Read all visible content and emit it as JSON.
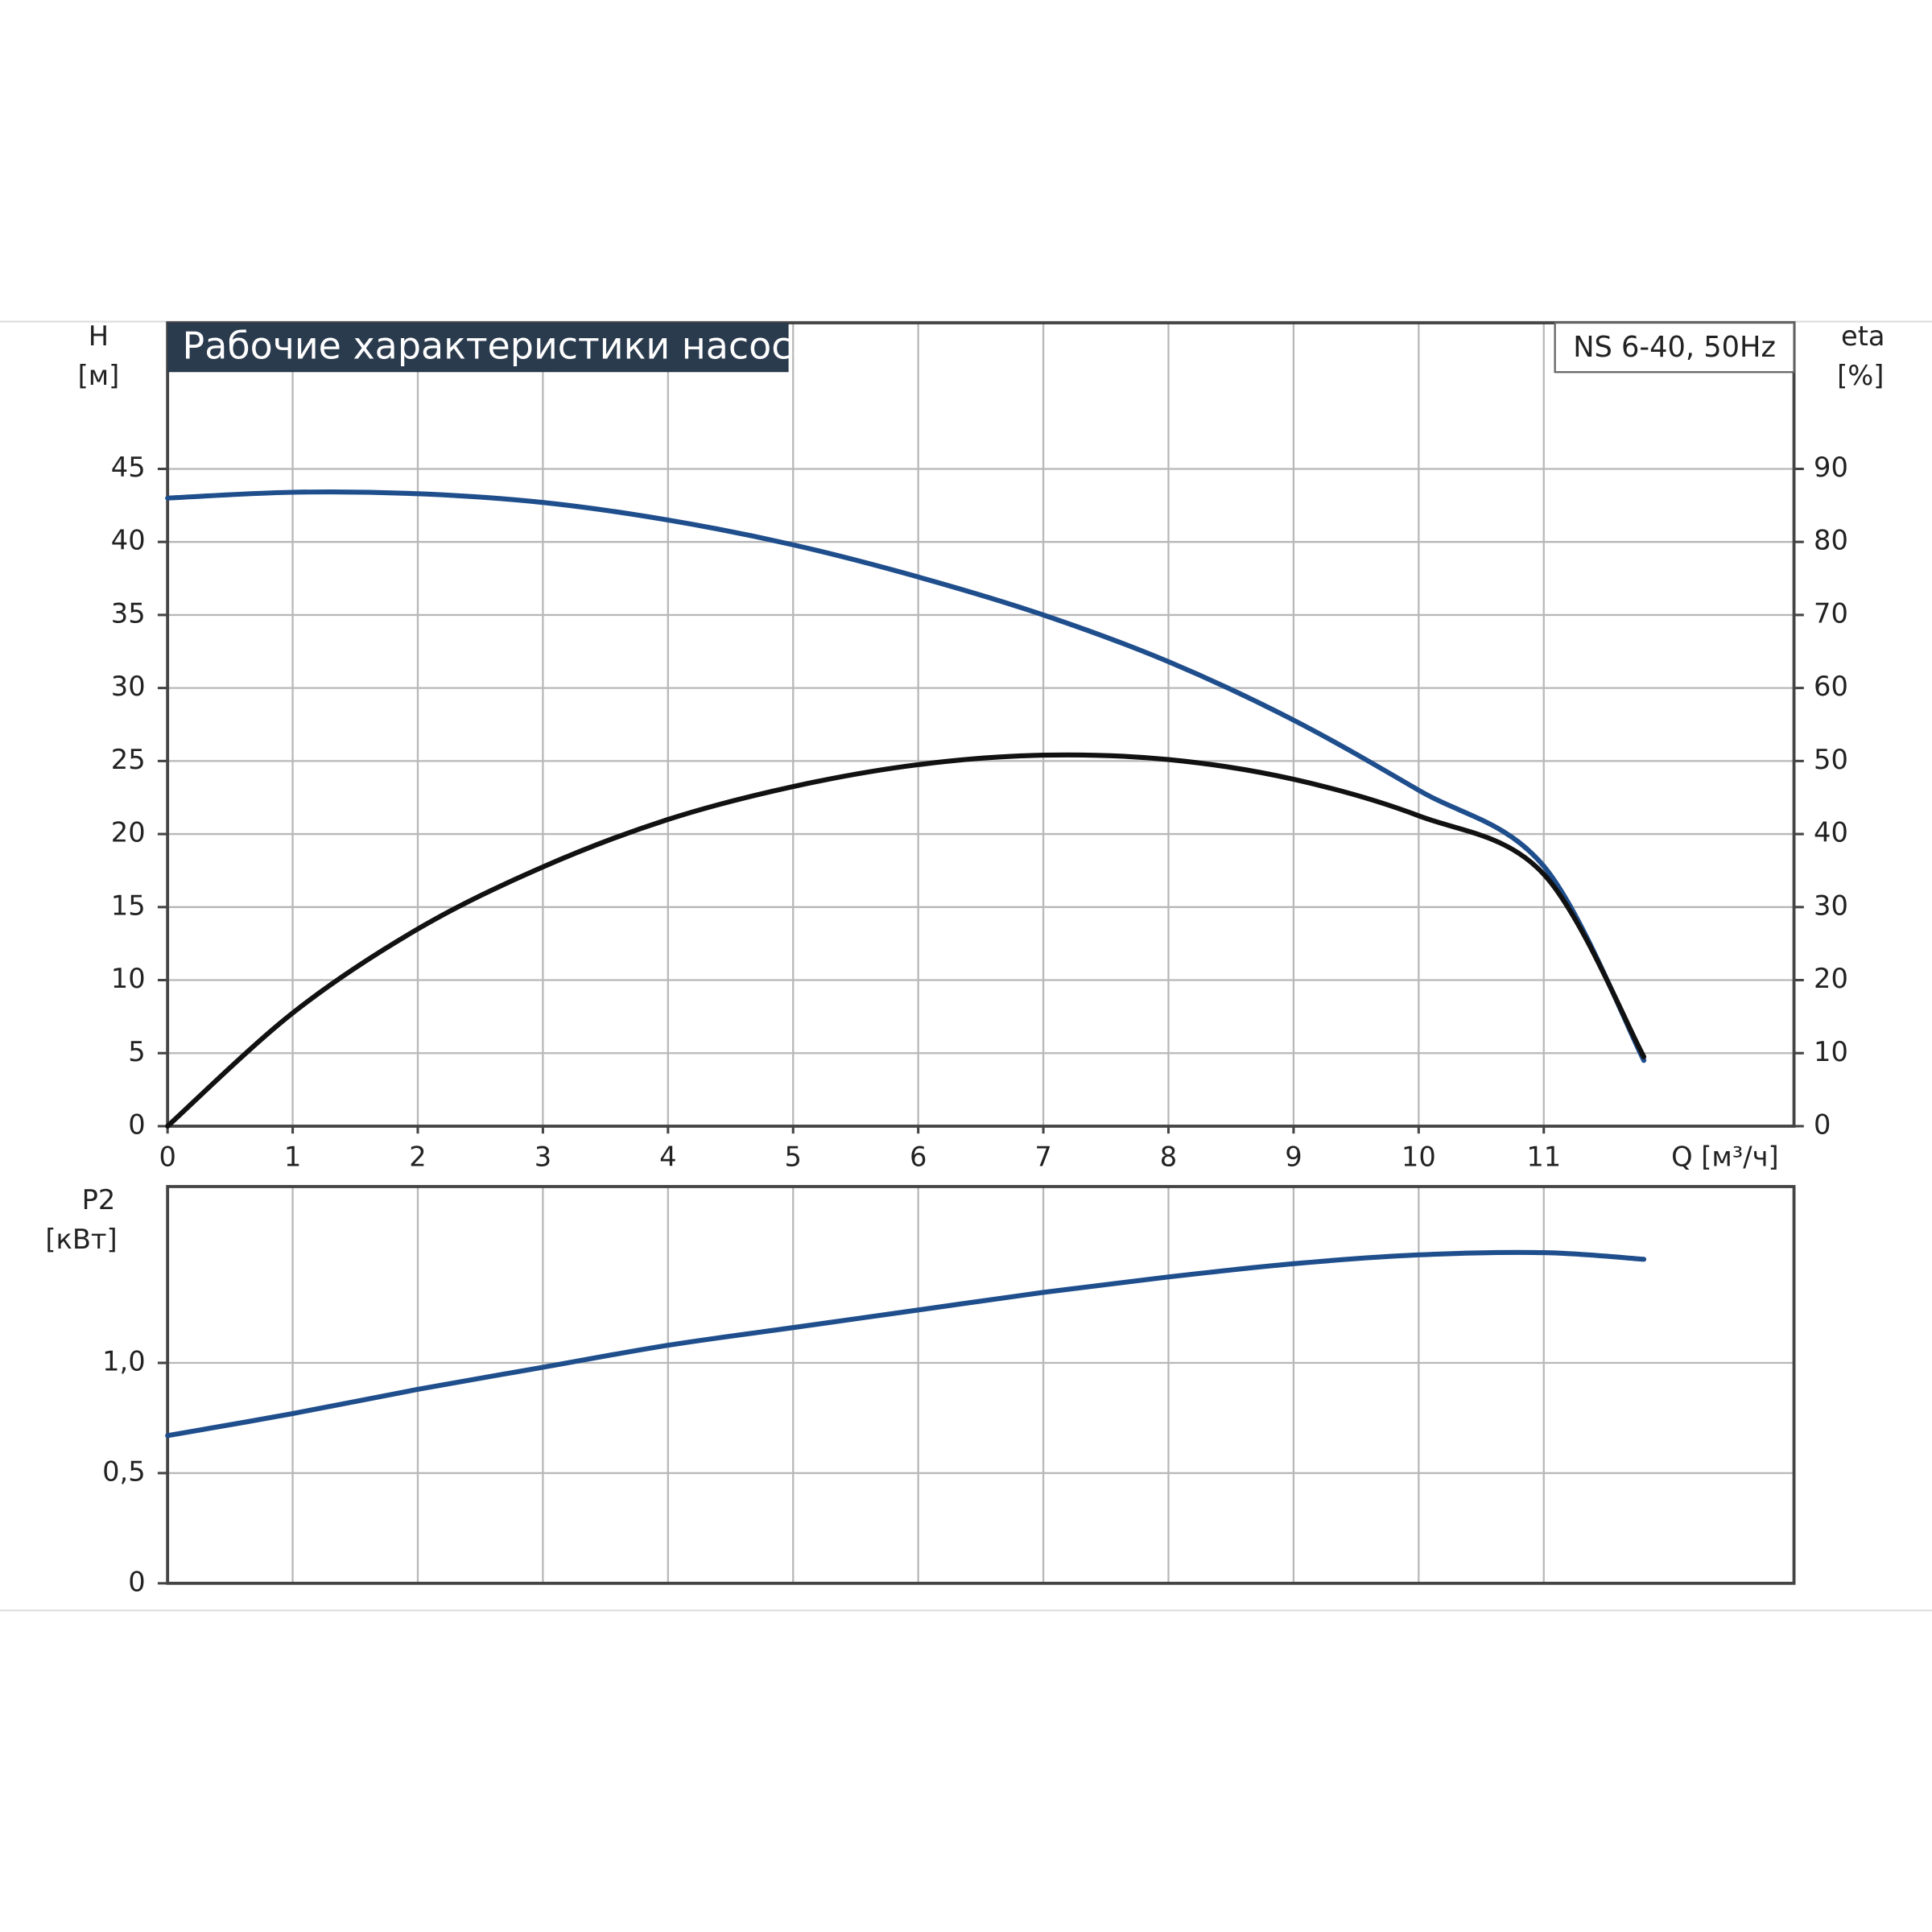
{
  "chart_data": [
    {
      "type": "line",
      "title": "Рабочие характеристики насоса",
      "annotation": "NS 6-40, 50Hz",
      "y_label": "H",
      "y_unit": "[м]",
      "y2_label": "eta",
      "y2_unit": "[%]",
      "x_label": "Q [м³/ч]",
      "xlim": [
        0,
        13
      ],
      "xticks": [
        0,
        1,
        2,
        3,
        4,
        5,
        6,
        7,
        8,
        9,
        10,
        11
      ],
      "ylim": [
        0,
        55
      ],
      "yticks": [
        0,
        5,
        10,
        15,
        20,
        25,
        30,
        35,
        40,
        45
      ],
      "y2lim": [
        0,
        110
      ],
      "y2ticks": [
        0,
        10,
        20,
        30,
        40,
        50,
        60,
        70,
        80,
        90
      ],
      "grid": true,
      "x": [
        0,
        1,
        2,
        3,
        4,
        5,
        6,
        7,
        8,
        9,
        10,
        11,
        11.8
      ],
      "series": [
        {
          "color": "#1f4e8c",
          "values": [
            43,
            43.4,
            43.3,
            42.7,
            41.5,
            39.8,
            37.6,
            35,
            31.8,
            27.8,
            23,
            17.8,
            4.5
          ]
        },
        {
          "color": "#111111",
          "axis": "y2",
          "values": [
            0,
            15.5,
            27,
            35.5,
            42,
            46.5,
            49.5,
            50.8,
            50.2,
            47.5,
            42.5,
            34.5,
            9.5
          ]
        }
      ]
    },
    {
      "type": "line",
      "y_label": "P2",
      "y_unit": "[кВт]",
      "xlim": [
        0,
        13
      ],
      "ylim": [
        0,
        1.8
      ],
      "yticks": [
        0,
        {
          "value": 0.5,
          "label": "0,5"
        },
        {
          "value": 1.0,
          "label": "1,0"
        }
      ],
      "grid": true,
      "x": [
        0,
        1,
        2,
        3,
        4,
        5,
        6,
        7,
        8,
        9,
        10,
        11,
        11.8
      ],
      "series": [
        {
          "color": "#1f4e8c",
          "values": [
            0.67,
            0.77,
            0.88,
            0.98,
            1.08,
            1.16,
            1.24,
            1.32,
            1.39,
            1.45,
            1.49,
            1.5,
            1.47
          ]
        }
      ]
    }
  ]
}
